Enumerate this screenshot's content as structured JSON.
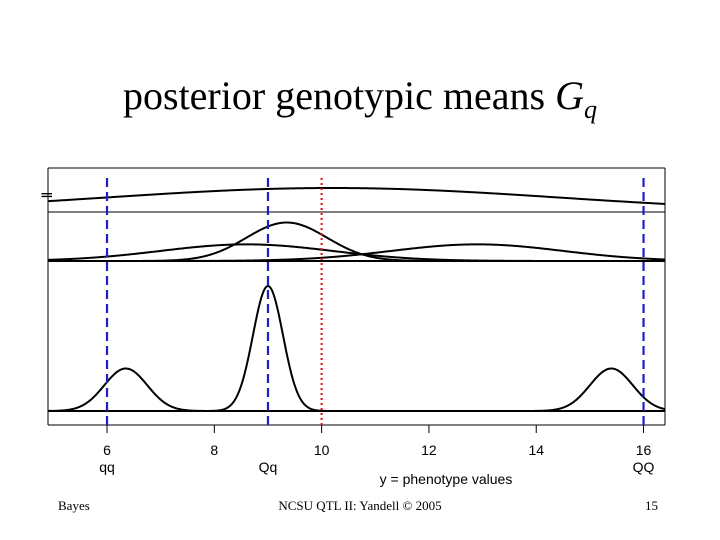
{
  "slide": {
    "title_text": "posterior genotypic means",
    "title_symbol": "G",
    "title_subscript": "q"
  },
  "footer": {
    "left": "Bayes",
    "center": "NCSU QTL II: Yandell © 2005",
    "right": "15"
  },
  "chart_data": {
    "type": "line",
    "title": "",
    "xlabel": "y = phenotype values",
    "ylabel": "",
    "xlim": [
      4.9,
      16.4
    ],
    "x_ticks": [
      6,
      8,
      10,
      12,
      14,
      16
    ],
    "x_tick_labels": [
      "6",
      "8",
      "10",
      "12",
      "14",
      "16"
    ],
    "genotype_labels": [
      {
        "x": 6,
        "label": "qq"
      },
      {
        "x": 9,
        "label": "Qq"
      },
      {
        "x": 16,
        "label": "QQ"
      }
    ],
    "left_axis_glyph": "Ⅱ",
    "reference_lines": [
      {
        "x": 6,
        "style": "dashed",
        "color": "#1f1fc8"
      },
      {
        "x": 9,
        "style": "dashed",
        "color": "#1f1fc8"
      },
      {
        "x": 10,
        "style": "dotted",
        "color": "#e01f1f"
      },
      {
        "x": 16,
        "style": "dashed",
        "color": "#1f1fc8"
      }
    ],
    "panels": [
      {
        "series": [
          {
            "type": "normal",
            "mean": 10.2,
            "sd": 4.2,
            "height": 1
          }
        ]
      },
      {
        "series": [
          {
            "type": "normal",
            "mean": 8.6,
            "sd": 1.6,
            "height": 0.32
          },
          {
            "type": "normal",
            "mean": 9.35,
            "sd": 0.75,
            "height": 0.74
          },
          {
            "type": "normal",
            "mean": 12.9,
            "sd": 1.6,
            "height": 0.32
          }
        ]
      },
      {
        "series": [
          {
            "type": "normal",
            "mean": 6.35,
            "sd": 0.4,
            "height": 0.34
          },
          {
            "type": "normal",
            "mean": 9.0,
            "sd": 0.28,
            "height": 1
          },
          {
            "type": "normal",
            "mean": 15.4,
            "sd": 0.4,
            "height": 0.34
          }
        ]
      }
    ]
  }
}
